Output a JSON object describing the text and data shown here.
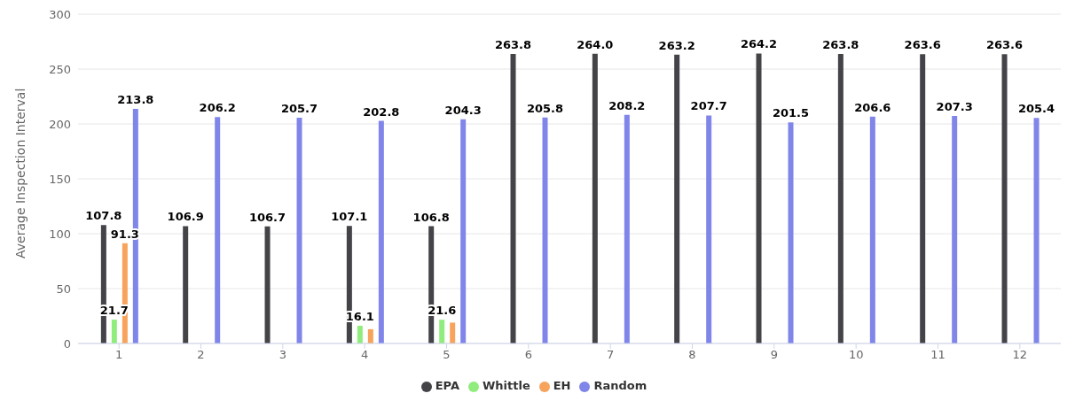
{
  "chart_data": {
    "type": "bar",
    "ylabel": "Average Inspection Interval",
    "categories": [
      "1",
      "2",
      "3",
      "4",
      "5",
      "6",
      "7",
      "8",
      "9",
      "10",
      "11",
      "12"
    ],
    "series": [
      {
        "name": "EPA",
        "color": "#434348",
        "values": [
          107.8,
          106.9,
          106.7,
          107.1,
          106.8,
          263.8,
          264.0,
          263.2,
          264.2,
          263.8,
          263.6,
          263.6
        ],
        "value_labels": [
          "107.8",
          "106.9",
          "106.7",
          "107.1",
          "106.8",
          "263.8",
          "264.0",
          "263.2",
          "264.2",
          "263.8",
          "263.6",
          "263.6"
        ]
      },
      {
        "name": "Whittle",
        "color": "#90ed7d",
        "values": [
          21.7,
          null,
          null,
          16.1,
          21.6,
          null,
          null,
          null,
          null,
          null,
          null,
          null
        ],
        "value_labels": [
          "21.7",
          null,
          null,
          "16.1",
          "21.6",
          null,
          null,
          null,
          null,
          null,
          null,
          null
        ]
      },
      {
        "name": "EH",
        "color": "#f7a35c",
        "values": [
          91.3,
          null,
          null,
          13,
          19,
          null,
          null,
          null,
          null,
          null,
          null,
          null
        ],
        "value_labels": [
          "91.3",
          null,
          null,
          null,
          null,
          null,
          null,
          null,
          null,
          null,
          null,
          null
        ]
      },
      {
        "name": "Random",
        "color": "#8085e9",
        "values": [
          213.8,
          206.2,
          205.7,
          202.8,
          204.3,
          205.8,
          208.2,
          207.7,
          201.5,
          206.6,
          207.3,
          205.4
        ],
        "value_labels": [
          "213.8",
          "206.2",
          "205.7",
          "202.8",
          "204.3",
          "205.8",
          "208.2",
          "207.7",
          "201.5",
          "206.6",
          "207.3",
          "205.4"
        ]
      }
    ],
    "ylim": [
      0,
      300
    ],
    "yticks": [
      0,
      50,
      100,
      150,
      200,
      250,
      300
    ],
    "grid": "y",
    "legend": "bottom"
  }
}
